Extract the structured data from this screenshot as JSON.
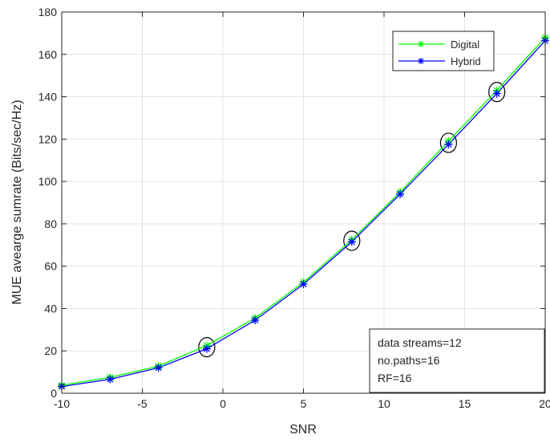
{
  "chart_data": {
    "type": "line",
    "title": "",
    "xlabel": "SNR",
    "ylabel": "MUE avearge sumrate (Bits/sec/Hz)",
    "xlim": [
      -10,
      20
    ],
    "ylim": [
      0,
      180
    ],
    "xticks": [
      -10,
      -5,
      0,
      5,
      10,
      15,
      20
    ],
    "yticks": [
      0,
      20,
      40,
      60,
      80,
      100,
      120,
      140,
      160,
      180
    ],
    "grid": true,
    "legend_position": "top-right",
    "x": [
      -10,
      -7,
      -4,
      -1,
      2,
      5,
      8,
      11,
      14,
      17,
      20
    ],
    "series": [
      {
        "name": "Digital",
        "color": "#00ff00",
        "marker": "asterisk",
        "values": [
          3.8,
          7.5,
          12.8,
          22.5,
          35.5,
          52.5,
          72.5,
          95.0,
          119.0,
          143.0,
          168.0
        ]
      },
      {
        "name": "Hybrid",
        "color": "#0000ff",
        "marker": "asterisk",
        "values": [
          3.2,
          6.6,
          12.0,
          21.0,
          34.5,
          51.5,
          71.5,
          94.0,
          117.5,
          141.5,
          166.5
        ]
      }
    ],
    "circled_x": [
      -1,
      8,
      14,
      17
    ],
    "annotation_lines": [
      "data streams=12",
      "no.paths=16",
      "RF=16"
    ]
  }
}
